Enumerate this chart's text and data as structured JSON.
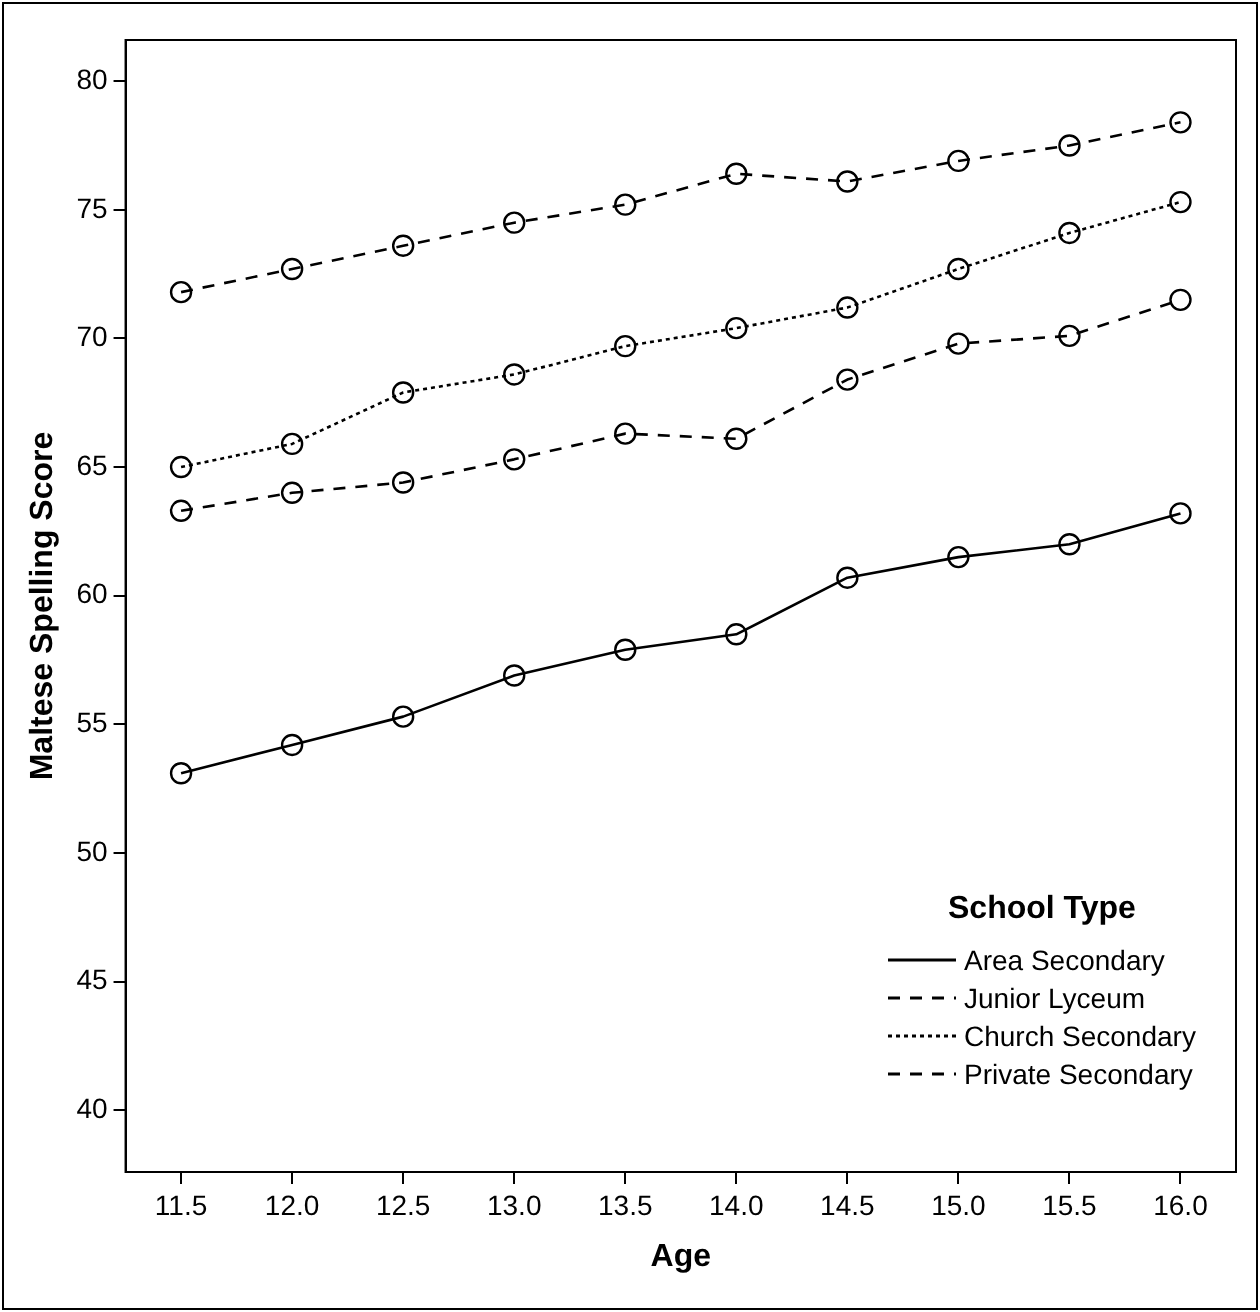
{
  "chart_data": {
    "type": "line",
    "xlabel": "Age",
    "ylabel": "Maltese Spelling Score",
    "legend_title": "School Type",
    "categories": [
      "11.5",
      "12.0",
      "12.5",
      "13.0",
      "13.5",
      "14.0",
      "14.5",
      "15.0",
      "15.5",
      "16.0"
    ],
    "series": [
      {
        "name": "Area Secondary",
        "color": "#000000",
        "line_style": "solid",
        "values": [
          53.1,
          54.2,
          55.3,
          56.9,
          57.9,
          58.5,
          60.7,
          61.5,
          62.0,
          63.2
        ]
      },
      {
        "name": "Junior Lyceum",
        "color": "#000000",
        "line_style": "dashed",
        "values": [
          71.8,
          72.7,
          73.6,
          74.5,
          75.2,
          76.4,
          76.1,
          76.9,
          77.5,
          78.4
        ]
      },
      {
        "name": "Church Secondary",
        "color": "#000000",
        "line_style": "dotted",
        "values": [
          65.0,
          65.9,
          67.9,
          68.6,
          69.7,
          70.4,
          71.2,
          72.7,
          74.1,
          75.3
        ]
      },
      {
        "name": "Private Secondary",
        "color": "#000000",
        "line_style": "dashed",
        "values": [
          63.3,
          64.0,
          64.4,
          65.3,
          66.3,
          66.1,
          68.4,
          69.8,
          70.1,
          71.5
        ]
      }
    ],
    "ylim": [
      37.6,
      81.6
    ],
    "yticks": [
      40,
      45,
      50,
      55,
      60,
      65,
      70,
      75,
      80
    ],
    "grid": false,
    "legend": "bottom right",
    "marker": "circle"
  }
}
